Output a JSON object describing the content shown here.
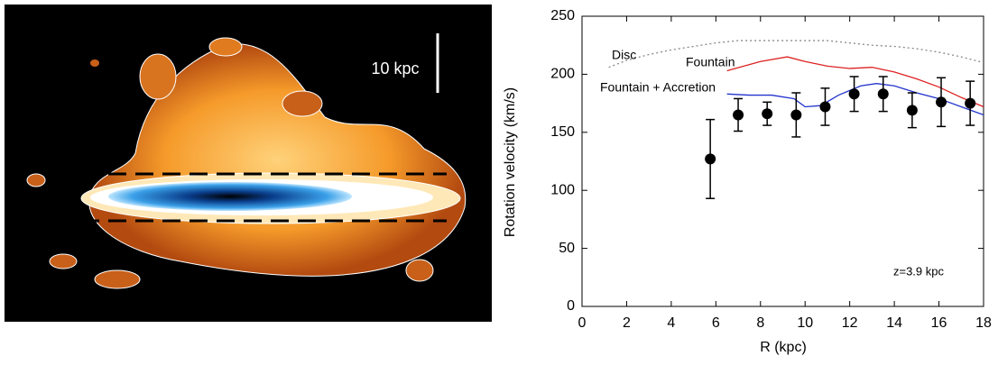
{
  "image": {
    "scale_label": "10 kpc"
  },
  "chart_data": {
    "type": "line",
    "xlabel": "R (kpc)",
    "ylabel": "Rotation velocity (km/s)",
    "annotation": "z=3.9 kpc",
    "xlim": [
      0,
      18
    ],
    "xticks": [
      0,
      2,
      4,
      6,
      8,
      10,
      12,
      14,
      16,
      18
    ],
    "ylim": [
      0,
      250
    ],
    "yticks": [
      0,
      50,
      100,
      150,
      200,
      250
    ],
    "series": [
      {
        "name": "Disc",
        "color": "#888888",
        "style": "dotted",
        "x": [
          1.2,
          2,
          3,
          4,
          5,
          6,
          7,
          8,
          9,
          10,
          11,
          12,
          13,
          14,
          15,
          16,
          17,
          18
        ],
        "values": [
          206,
          212,
          217,
          221,
          224,
          227,
          229,
          229,
          229,
          229,
          229,
          227,
          225,
          224,
          222,
          219,
          215,
          210
        ]
      },
      {
        "name": "Fountain",
        "color": "#dd2222",
        "style": "solid",
        "x": [
          6.5,
          8,
          9.2,
          10,
          11,
          12,
          13,
          14,
          15,
          16,
          17,
          18
        ],
        "values": [
          203,
          211,
          215,
          211,
          207,
          205,
          206,
          202,
          196,
          189,
          180,
          172
        ]
      },
      {
        "name": "Fountain + Accretion",
        "color": "#2233cc",
        "style": "solid",
        "x": [
          6.5,
          7.5,
          8.5,
          9.5,
          10,
          10.7,
          11.5,
          12.5,
          13.2,
          14,
          15,
          16,
          17,
          18
        ],
        "values": [
          183,
          182,
          182,
          179,
          172,
          173,
          182,
          190,
          192,
          190,
          184,
          179,
          172,
          165
        ]
      },
      {
        "color": "#000000",
        "style": "points",
        "x": [
          5.75,
          7.0,
          8.3,
          9.6,
          10.9,
          12.2,
          13.5,
          14.8,
          16.1,
          17.4
        ],
        "values": [
          127,
          165,
          166,
          165,
          172,
          183,
          183,
          169,
          176,
          175
        ],
        "errors": [
          34,
          14,
          10,
          19,
          16,
          15,
          15,
          15,
          21,
          19
        ]
      }
    ]
  }
}
